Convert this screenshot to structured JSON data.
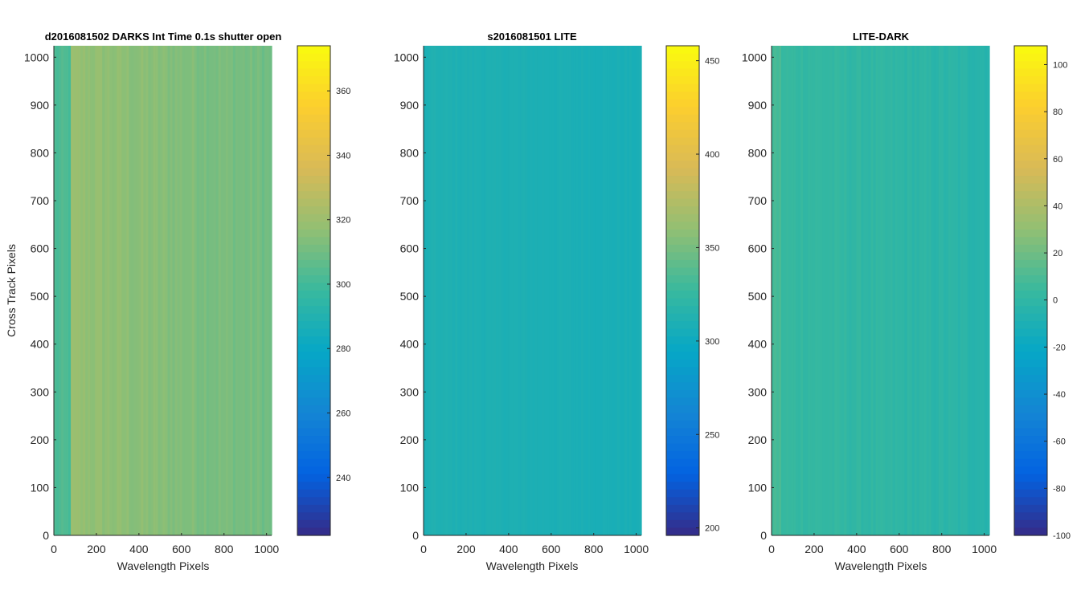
{
  "window": {
    "width": 1350,
    "height": 750
  },
  "colormap": {
    "name": "parula",
    "stops": [
      "#352a87",
      "#0363e1",
      "#1485d4",
      "#06a7c6",
      "#38b99e",
      "#92bf73",
      "#d9ba56",
      "#fcce2e",
      "#f9fb0e"
    ]
  },
  "chart_data": [
    {
      "type": "heatmap",
      "title": "d2016081502  DARKS   Int Time 0.1s   shutter open",
      "xlabel": "Wavelength Pixels",
      "ylabel": "Cross Track Pixels",
      "xlim": [
        0,
        1024
      ],
      "ylim": [
        0,
        1024
      ],
      "xticks": [
        0,
        200,
        400,
        600,
        800,
        1000
      ],
      "yticks": [
        0,
        100,
        200,
        300,
        400,
        500,
        600,
        700,
        800,
        900,
        1000
      ],
      "clim": [
        222,
        374
      ],
      "cticks": [
        240,
        260,
        280,
        300,
        320,
        340,
        360
      ],
      "field": {
        "mean": 313,
        "noise": 5,
        "left_edge_value": 302,
        "left_edge_width": 75,
        "left_bright_value": 318,
        "right_fade_value": 310
      }
    },
    {
      "type": "heatmap",
      "title": "s2016081501  LITE",
      "xlabel": "Wavelength Pixels",
      "ylabel": "",
      "xlim": [
        0,
        1024
      ],
      "ylim": [
        0,
        1024
      ],
      "xticks": [
        0,
        200,
        400,
        600,
        800,
        1000
      ],
      "yticks": [
        0,
        100,
        200,
        300,
        400,
        500,
        600,
        700,
        800,
        900,
        1000
      ],
      "clim": [
        196,
        458
      ],
      "cticks": [
        200,
        250,
        300,
        350,
        400,
        450
      ],
      "field": {
        "mean": 310,
        "noise": 3,
        "left_edge_value": 308,
        "left_edge_width": 20,
        "left_bright_value": 311,
        "right_fade_value": 307
      }
    },
    {
      "type": "heatmap",
      "title": "LITE-DARK",
      "xlabel": "Wavelength Pixels",
      "ylabel": "",
      "xlim": [
        0,
        1024
      ],
      "ylim": [
        0,
        1024
      ],
      "xticks": [
        0,
        200,
        400,
        600,
        800,
        1000
      ],
      "yticks": [
        0,
        100,
        200,
        300,
        400,
        500,
        600,
        700,
        800,
        900,
        1000
      ],
      "clim": [
        -100,
        108
      ],
      "cticks": [
        -100,
        -80,
        -60,
        -40,
        -20,
        0,
        20,
        40,
        60,
        80,
        100
      ],
      "field": {
        "mean": -2,
        "noise": 5,
        "left_edge_value": 8,
        "left_edge_width": 40,
        "left_bright_value": 3,
        "right_fade_value": -4
      }
    }
  ]
}
